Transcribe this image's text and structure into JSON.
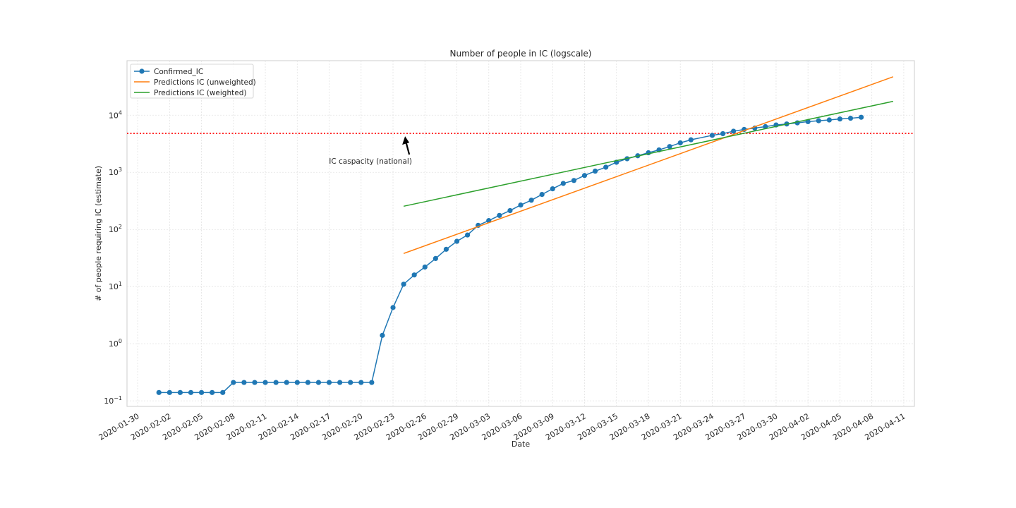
{
  "chart_data": {
    "type": "line",
    "title": "Number of people in IC (logscale)",
    "xlabel": "Date",
    "ylabel": "# of people requiring IC (estimate)",
    "y_scale": "log",
    "ylim": [
      0.08,
      90000
    ],
    "xlim": [
      "2020-01-29",
      "2020-04-12"
    ],
    "grid": true,
    "legend_position": "top-left",
    "x_tick_labels": [
      "2020-01-30",
      "2020-02-02",
      "2020-02-05",
      "2020-02-08",
      "2020-02-11",
      "2020-02-14",
      "2020-02-17",
      "2020-02-20",
      "2020-02-23",
      "2020-02-26",
      "2020-02-29",
      "2020-03-03",
      "2020-03-06",
      "2020-03-09",
      "2020-03-12",
      "2020-03-15",
      "2020-03-18",
      "2020-03-21",
      "2020-03-24",
      "2020-03-27",
      "2020-03-30",
      "2020-04-02",
      "2020-04-05",
      "2020-04-08",
      "2020-04-11"
    ],
    "y_ticks": [
      {
        "value": 0.1,
        "base": "10",
        "exp": "−1"
      },
      {
        "value": 1,
        "base": "10",
        "exp": "0"
      },
      {
        "value": 10,
        "base": "10",
        "exp": "1"
      },
      {
        "value": 100,
        "base": "10",
        "exp": "2"
      },
      {
        "value": 1000,
        "base": "10",
        "exp": "3"
      },
      {
        "value": 10000,
        "base": "10",
        "exp": "4"
      }
    ],
    "series": [
      {
        "name": "Confirmed_IC",
        "color": "#1f77b4",
        "marker": "circle",
        "points": [
          [
            "2020-02-01",
            0.14
          ],
          [
            "2020-02-02",
            0.14
          ],
          [
            "2020-02-03",
            0.14
          ],
          [
            "2020-02-04",
            0.14
          ],
          [
            "2020-02-05",
            0.14
          ],
          [
            "2020-02-06",
            0.14
          ],
          [
            "2020-02-07",
            0.14
          ],
          [
            "2020-02-08",
            0.21
          ],
          [
            "2020-02-09",
            0.21
          ],
          [
            "2020-02-10",
            0.21
          ],
          [
            "2020-02-11",
            0.21
          ],
          [
            "2020-02-12",
            0.21
          ],
          [
            "2020-02-13",
            0.21
          ],
          [
            "2020-02-14",
            0.21
          ],
          [
            "2020-02-15",
            0.21
          ],
          [
            "2020-02-16",
            0.21
          ],
          [
            "2020-02-17",
            0.21
          ],
          [
            "2020-02-18",
            0.21
          ],
          [
            "2020-02-19",
            0.21
          ],
          [
            "2020-02-20",
            0.21
          ],
          [
            "2020-02-21",
            0.21
          ],
          [
            "2020-02-22",
            1.4
          ],
          [
            "2020-02-23",
            4.3
          ],
          [
            "2020-02-24",
            11
          ],
          [
            "2020-02-25",
            16
          ],
          [
            "2020-02-26",
            22
          ],
          [
            "2020-02-27",
            31
          ],
          [
            "2020-02-28",
            45
          ],
          [
            "2020-02-29",
            62
          ],
          [
            "2020-03-01",
            80
          ],
          [
            "2020-03-02",
            118
          ],
          [
            "2020-03-03",
            143
          ],
          [
            "2020-03-04",
            176
          ],
          [
            "2020-03-05",
            214
          ],
          [
            "2020-03-06",
            268
          ],
          [
            "2020-03-07",
            325
          ],
          [
            "2020-03-08",
            410
          ],
          [
            "2020-03-09",
            515
          ],
          [
            "2020-03-10",
            640
          ],
          [
            "2020-03-11",
            720
          ],
          [
            "2020-03-12",
            880
          ],
          [
            "2020-03-13",
            1050
          ],
          [
            "2020-03-14",
            1230
          ],
          [
            "2020-03-15",
            1500
          ],
          [
            "2020-03-16",
            1730
          ],
          [
            "2020-03-17",
            1950
          ],
          [
            "2020-03-18",
            2200
          ],
          [
            "2020-03-19",
            2470
          ],
          [
            "2020-03-20",
            2830
          ],
          [
            "2020-03-21",
            3280
          ],
          [
            "2020-03-22",
            3710
          ],
          [
            "2020-03-24",
            4440
          ],
          [
            "2020-03-25",
            4750
          ],
          [
            "2020-03-26",
            5250
          ],
          [
            "2020-03-27",
            5630
          ],
          [
            "2020-03-28",
            5950
          ],
          [
            "2020-03-29",
            6300
          ],
          [
            "2020-03-30",
            6750
          ],
          [
            "2020-03-31",
            7020
          ],
          [
            "2020-04-01",
            7350
          ],
          [
            "2020-04-02",
            7710
          ],
          [
            "2020-04-03",
            8000
          ],
          [
            "2020-04-04",
            8250
          ],
          [
            "2020-04-05",
            8580
          ],
          [
            "2020-04-06",
            8850
          ],
          [
            "2020-04-07",
            9200
          ]
        ]
      },
      {
        "name": "Predictions IC (unweighted)",
        "color": "#ff7f0e",
        "points": [
          [
            "2020-02-24",
            38
          ],
          [
            "2020-04-10",
            47000
          ]
        ]
      },
      {
        "name": "Predictions IC (weighted)",
        "color": "#2ca02c",
        "points": [
          [
            "2020-02-24",
            255
          ],
          [
            "2020-04-10",
            17500
          ]
        ]
      }
    ],
    "hline": {
      "value": 4800,
      "color": "#ff0000",
      "style": "dotted"
    },
    "annotations": [
      {
        "text": "IC caspacity (national)",
        "text_at": [
          "2020-02-24",
          1500
        ],
        "arrow_to": [
          "2020-02-24",
          4800
        ]
      }
    ]
  }
}
